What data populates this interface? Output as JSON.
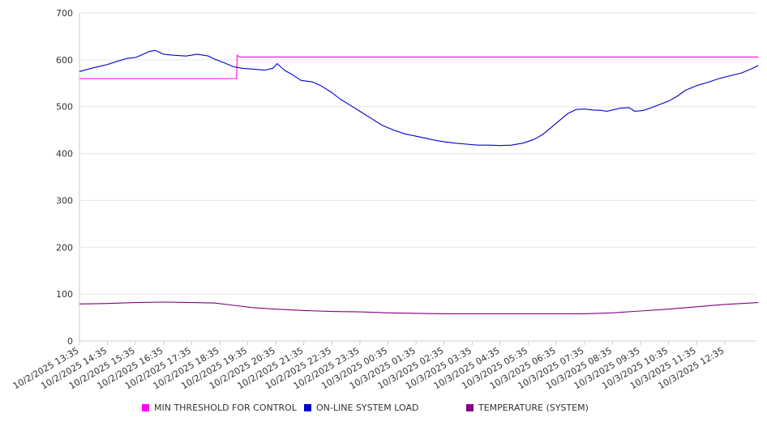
{
  "chart_data": {
    "type": "line",
    "title": "",
    "xlabel": "",
    "ylabel": "",
    "ylim": [
      0,
      700
    ],
    "y_ticks": [
      0,
      100,
      200,
      300,
      400,
      500,
      600,
      700
    ],
    "grid": true,
    "legend_position": "bottom",
    "x_tick_labels": [
      "10/2/2025 13:35",
      "10/2/2025 14:35",
      "10/2/2025 15:35",
      "10/2/2025 16:35",
      "10/2/2025 17:35",
      "10/2/2025 18:35",
      "10/2/2025 19:35",
      "10/2/2025 20:35",
      "10/2/2025 21:35",
      "10/2/2025 22:35",
      "10/2/2025 23:35",
      "10/3/2025 00:35",
      "10/3/2025 01:35",
      "10/3/2025 02:35",
      "10/3/2025 03:35",
      "10/3/2025 04:35",
      "10/3/2025 05:35",
      "10/3/2025 06:35",
      "10/3/2025 07:35",
      "10/3/2025 08:35",
      "10/3/2025 09:35",
      "10/3/2025 10:35",
      "10/3/2025 11:35",
      "10/3/2025 12:35"
    ],
    "x_hours_per_tick": 1,
    "series": [
      {
        "name": "MIN THRESHOLD FOR CONTROL",
        "color": "#ff00ff",
        "points": [
          [
            0,
            560
          ],
          [
            5.6,
            560
          ],
          [
            5.62,
            610
          ],
          [
            5.7,
            606
          ],
          [
            24.2,
            606
          ]
        ]
      },
      {
        "name": "ON-LINE SYSTEM LOAD",
        "color": "#0000cc",
        "points": [
          [
            0,
            575
          ],
          [
            0.5,
            583
          ],
          [
            1.0,
            590
          ],
          [
            1.3,
            596
          ],
          [
            1.7,
            603
          ],
          [
            2.0,
            605
          ],
          [
            2.2,
            610
          ],
          [
            2.5,
            618
          ],
          [
            2.7,
            620
          ],
          [
            3.0,
            612
          ],
          [
            3.3,
            610
          ],
          [
            3.8,
            608
          ],
          [
            4.2,
            612
          ],
          [
            4.6,
            608
          ],
          [
            4.8,
            602
          ],
          [
            5.1,
            595
          ],
          [
            5.5,
            585
          ],
          [
            5.8,
            582
          ],
          [
            6.2,
            580
          ],
          [
            6.6,
            578
          ],
          [
            6.9,
            582
          ],
          [
            7.05,
            592
          ],
          [
            7.3,
            578
          ],
          [
            7.6,
            568
          ],
          [
            7.9,
            556
          ],
          [
            8.3,
            553
          ],
          [
            8.6,
            545
          ],
          [
            9.0,
            530
          ],
          [
            9.3,
            516
          ],
          [
            9.6,
            505
          ],
          [
            10.0,
            490
          ],
          [
            10.4,
            475
          ],
          [
            10.8,
            460
          ],
          [
            11.2,
            450
          ],
          [
            11.6,
            442
          ],
          [
            12.0,
            437
          ],
          [
            12.4,
            432
          ],
          [
            12.7,
            428
          ],
          [
            13.0,
            425
          ],
          [
            13.4,
            422
          ],
          [
            13.8,
            420
          ],
          [
            14.2,
            418
          ],
          [
            14.6,
            418
          ],
          [
            15.0,
            417
          ],
          [
            15.4,
            418
          ],
          [
            15.8,
            422
          ],
          [
            16.2,
            430
          ],
          [
            16.5,
            440
          ],
          [
            16.8,
            455
          ],
          [
            17.1,
            470
          ],
          [
            17.4,
            485
          ],
          [
            17.7,
            494
          ],
          [
            18.0,
            495
          ],
          [
            18.3,
            493
          ],
          [
            18.6,
            492
          ],
          [
            18.8,
            490
          ],
          [
            19.0,
            493
          ],
          [
            19.3,
            497
          ],
          [
            19.6,
            498
          ],
          [
            19.8,
            490
          ],
          [
            20.1,
            492
          ],
          [
            20.4,
            498
          ],
          [
            20.7,
            505
          ],
          [
            21.0,
            512
          ],
          [
            21.3,
            522
          ],
          [
            21.6,
            535
          ],
          [
            22.0,
            545
          ],
          [
            22.4,
            552
          ],
          [
            22.8,
            560
          ],
          [
            23.2,
            566
          ],
          [
            23.6,
            572
          ],
          [
            24.0,
            582
          ],
          [
            24.2,
            588
          ]
        ]
      },
      {
        "name": "TEMPERATURE (SYSTEM)",
        "color": "#800080",
        "points": [
          [
            0,
            79
          ],
          [
            1.0,
            80
          ],
          [
            2.0,
            82
          ],
          [
            3.0,
            83
          ],
          [
            4.0,
            82
          ],
          [
            4.8,
            81
          ],
          [
            5.5,
            76
          ],
          [
            6.2,
            71
          ],
          [
            7.0,
            68
          ],
          [
            8.0,
            65
          ],
          [
            9.0,
            63
          ],
          [
            10.0,
            62
          ],
          [
            11.0,
            60
          ],
          [
            12.0,
            59
          ],
          [
            13.0,
            58
          ],
          [
            14.0,
            58
          ],
          [
            15.0,
            58
          ],
          [
            16.0,
            58
          ],
          [
            17.0,
            58
          ],
          [
            18.0,
            58
          ],
          [
            19.0,
            60
          ],
          [
            20.0,
            64
          ],
          [
            21.0,
            68
          ],
          [
            22.0,
            73
          ],
          [
            23.0,
            78
          ],
          [
            24.2,
            82
          ]
        ]
      }
    ]
  }
}
